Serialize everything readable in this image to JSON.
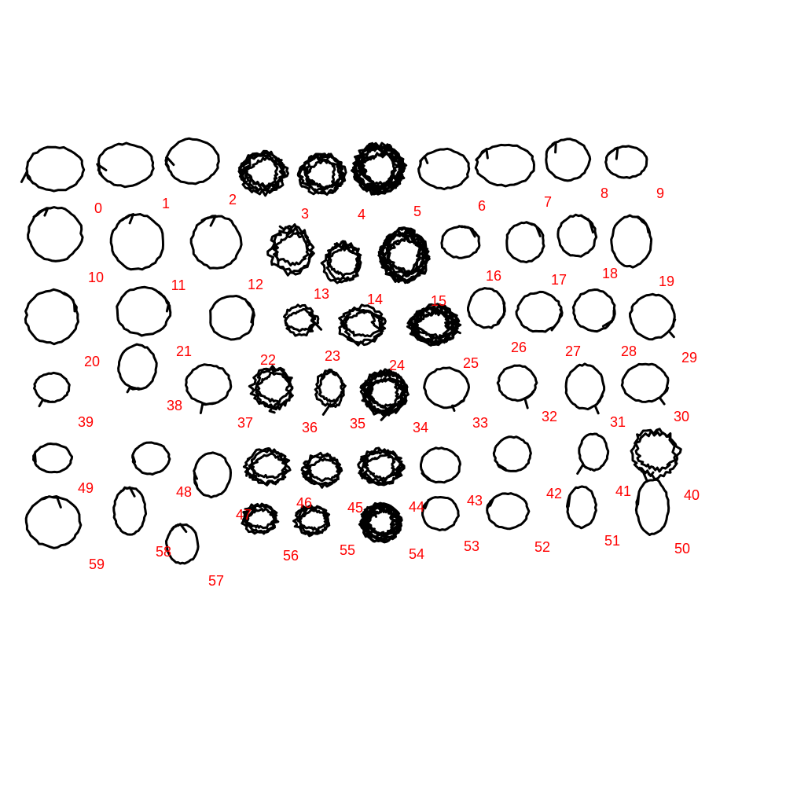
{
  "ink_color": "#000000",
  "label_color": "#ff0000",
  "background_color": "#ffffff",
  "labels": [
    "0",
    "1",
    "2",
    "3",
    "4",
    "5",
    "6",
    "7",
    "8",
    "9",
    "10",
    "11",
    "12",
    "13",
    "14",
    "15",
    "16",
    "17",
    "18",
    "19",
    "20",
    "21",
    "22",
    "23",
    "24",
    "25",
    "26",
    "27",
    "28",
    "29",
    "30",
    "31",
    "32",
    "33",
    "34",
    "35",
    "36",
    "37",
    "38",
    "39",
    "40",
    "41",
    "42",
    "43",
    "44",
    "45",
    "46",
    "47",
    "48",
    "49",
    "50",
    "51",
    "52",
    "53",
    "54",
    "55",
    "56",
    "57",
    "58",
    "59"
  ],
  "glyphs": [
    {
      "id": 0,
      "loops": 1
    },
    {
      "id": 1,
      "loops": 1
    },
    {
      "id": 2,
      "loops": 1
    },
    {
      "id": 3,
      "loops": 5
    },
    {
      "id": 4,
      "loops": 5
    },
    {
      "id": 5,
      "loops": 9
    },
    {
      "id": 6,
      "loops": 1
    },
    {
      "id": 7,
      "loops": 1
    },
    {
      "id": 8,
      "loops": 1
    },
    {
      "id": 9,
      "loops": 1
    },
    {
      "id": 10,
      "loops": 1
    },
    {
      "id": 11,
      "loops": 1
    },
    {
      "id": 12,
      "loops": 1
    },
    {
      "id": 13,
      "loops": 3
    },
    {
      "id": 14,
      "loops": 3
    },
    {
      "id": 15,
      "loops": 8
    },
    {
      "id": 16,
      "loops": 1
    },
    {
      "id": 17,
      "loops": 1
    },
    {
      "id": 18,
      "loops": 1
    },
    {
      "id": 19,
      "loops": 1
    },
    {
      "id": 20,
      "loops": 1
    },
    {
      "id": 21,
      "loops": 1
    },
    {
      "id": 22,
      "loops": 1
    },
    {
      "id": 23,
      "loops": 2
    },
    {
      "id": 24,
      "loops": 3
    },
    {
      "id": 25,
      "loops": 7
    },
    {
      "id": 26,
      "loops": 1
    },
    {
      "id": 27,
      "loops": 1
    },
    {
      "id": 28,
      "loops": 1
    },
    {
      "id": 29,
      "loops": 1
    },
    {
      "id": 30,
      "loops": 1
    },
    {
      "id": 31,
      "loops": 1
    },
    {
      "id": 32,
      "loops": 1
    },
    {
      "id": 33,
      "loops": 1
    },
    {
      "id": 34,
      "loops": 7
    },
    {
      "id": 35,
      "loops": 2
    },
    {
      "id": 36,
      "loops": 3
    },
    {
      "id": 37,
      "loops": 1
    },
    {
      "id": 38,
      "loops": 1
    },
    {
      "id": 39,
      "loops": 1
    },
    {
      "id": 40,
      "loops": 2
    },
    {
      "id": 41,
      "loops": 1
    },
    {
      "id": 42,
      "loops": 1
    },
    {
      "id": 43,
      "loops": 1
    },
    {
      "id": 44,
      "loops": 4
    },
    {
      "id": 45,
      "loops": 3
    },
    {
      "id": 46,
      "loops": 3
    },
    {
      "id": 47,
      "loops": 1
    },
    {
      "id": 48,
      "loops": 1
    },
    {
      "id": 49,
      "loops": 1
    },
    {
      "id": 50,
      "loops": 1
    },
    {
      "id": 51,
      "loops": 1
    },
    {
      "id": 52,
      "loops": 1
    },
    {
      "id": 53,
      "loops": 1
    },
    {
      "id": 54,
      "loops": 8
    },
    {
      "id": 55,
      "loops": 3
    },
    {
      "id": 56,
      "loops": 3
    },
    {
      "id": 57,
      "loops": 1
    },
    {
      "id": 58,
      "loops": 1
    },
    {
      "id": 59,
      "loops": 1
    }
  ]
}
